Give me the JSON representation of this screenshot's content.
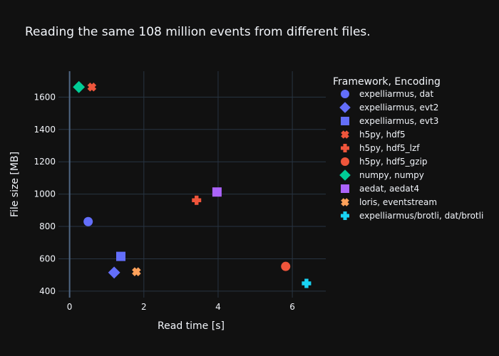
{
  "chart_data": {
    "type": "scatter",
    "title": "Reading the same 108 million events from different files.",
    "xlabel": "Read time [s]",
    "ylabel": "File size [MB]",
    "xlim": [
      -0.3,
      6.9
    ],
    "ylim": [
      360,
      1760
    ],
    "xticks": [
      0,
      2,
      4,
      6
    ],
    "yticks": [
      400,
      600,
      800,
      1000,
      1200,
      1400,
      1600
    ],
    "grid": true,
    "legend_title": "Framework, Encoding",
    "legend_position": "right",
    "series": [
      {
        "name": "expelliarmus, dat",
        "symbol": "circle",
        "color": "#636efa",
        "points": [
          [
            0.5,
            830
          ]
        ]
      },
      {
        "name": "expelliarmus, evt2",
        "symbol": "diamond",
        "color": "#636efa",
        "points": [
          [
            1.2,
            515
          ]
        ]
      },
      {
        "name": "expelliarmus, evt3",
        "symbol": "square",
        "color": "#636efa",
        "points": [
          [
            1.38,
            615
          ]
        ]
      },
      {
        "name": "h5py, hdf5",
        "symbol": "x",
        "color": "#ef553b",
        "points": [
          [
            0.6,
            1662
          ]
        ]
      },
      {
        "name": "h5py, hdf5_lzf",
        "symbol": "cross",
        "color": "#ef553b",
        "points": [
          [
            3.42,
            962
          ]
        ]
      },
      {
        "name": "h5py, hdf5_gzip",
        "symbol": "circle",
        "color": "#ef553b",
        "points": [
          [
            5.82,
            553
          ]
        ]
      },
      {
        "name": "numpy, numpy",
        "symbol": "diamond",
        "color": "#00cc96",
        "points": [
          [
            0.25,
            1662
          ]
        ]
      },
      {
        "name": "aedat, aedat4",
        "symbol": "square",
        "color": "#ab63fa",
        "points": [
          [
            3.97,
            1013
          ]
        ]
      },
      {
        "name": "loris, eventstream",
        "symbol": "x",
        "color": "#ffa15a",
        "points": [
          [
            1.8,
            520
          ]
        ]
      },
      {
        "name": "expelliarmus/brotli, dat/brotli",
        "symbol": "cross",
        "color": "#19d3f3",
        "points": [
          [
            6.38,
            448
          ]
        ]
      }
    ]
  }
}
